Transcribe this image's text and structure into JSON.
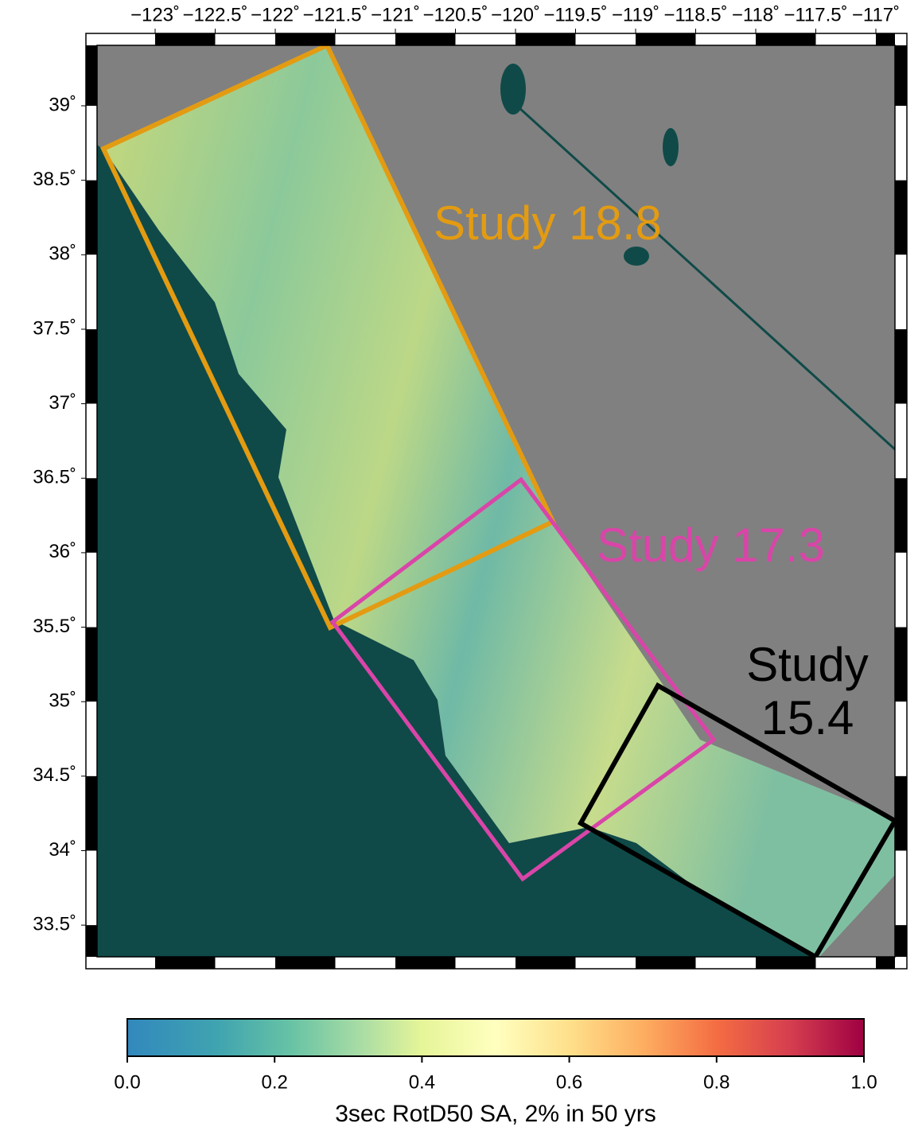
{
  "map": {
    "lon_ticks": [
      {
        "value": -123,
        "label": "−123˚"
      },
      {
        "value": -122.5,
        "label": "−122.5˚"
      },
      {
        "value": -122,
        "label": "−122˚"
      },
      {
        "value": -121.5,
        "label": "−121.5˚"
      },
      {
        "value": -121,
        "label": "−121˚"
      },
      {
        "value": -120.5,
        "label": "−120.5˚"
      },
      {
        "value": -120,
        "label": "−120˚"
      },
      {
        "value": -119.5,
        "label": "−119.5˚"
      },
      {
        "value": -119,
        "label": "−119˚"
      },
      {
        "value": -118.5,
        "label": "−118.5˚"
      },
      {
        "value": -118,
        "label": "−118˚"
      },
      {
        "value": -117.5,
        "label": "−117.5˚"
      },
      {
        "value": -117,
        "label": "−117˚"
      }
    ],
    "lat_ticks": [
      {
        "value": 39,
        "label": "39˚"
      },
      {
        "value": 38.5,
        "label": "38.5˚"
      },
      {
        "value": 38,
        "label": "38˚"
      },
      {
        "value": 37.5,
        "label": "37.5˚"
      },
      {
        "value": 37,
        "label": "37˚"
      },
      {
        "value": 36.5,
        "label": "36.5˚"
      },
      {
        "value": 36,
        "label": "36˚"
      },
      {
        "value": 35.5,
        "label": "35.5˚"
      },
      {
        "value": 35,
        "label": "35˚"
      },
      {
        "value": 34.5,
        "label": "34.5˚"
      },
      {
        "value": 34,
        "label": "34˚"
      },
      {
        "value": 33.5,
        "label": "33.5˚"
      }
    ],
    "studies": [
      {
        "label": "Study 18.8",
        "color": "#e39b12"
      },
      {
        "label": "Study 17.3",
        "color": "#d945a8"
      },
      {
        "label_lines": [
          "Study",
          "15.4"
        ],
        "color": "#000000"
      }
    ]
  },
  "colorbar": {
    "ticks": [
      {
        "value": 0,
        "label": "0.0"
      },
      {
        "value": 0.2,
        "label": "0.2"
      },
      {
        "value": 0.4,
        "label": "0.4"
      },
      {
        "value": 0.6,
        "label": "0.6"
      },
      {
        "value": 0.8,
        "label": "0.8"
      },
      {
        "value": 1,
        "label": "1.0"
      }
    ],
    "range": [
      0,
      1
    ],
    "label": "3sec RotD50 SA, 2% in 50 yrs"
  }
}
